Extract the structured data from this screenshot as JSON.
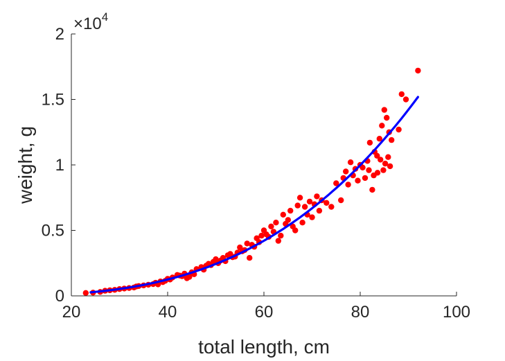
{
  "chart_data": {
    "type": "scatter",
    "title": "",
    "xlabel": "total length, cm",
    "ylabel": "weight, g",
    "xlim": [
      20,
      100
    ],
    "ylim": [
      0,
      20000
    ],
    "x_ticks": [
      20,
      40,
      60,
      80,
      100
    ],
    "x_tick_labels": [
      "20",
      "40",
      "60",
      "80",
      "100"
    ],
    "y_ticks": [
      0,
      5000,
      10000,
      15000,
      20000
    ],
    "y_tick_labels": [
      "0",
      "0.5",
      "1",
      "1.5",
      "2"
    ],
    "y_exponent_label": {
      "base": "×10",
      "exponent": "4"
    },
    "grid": false,
    "series": [
      {
        "kind": "scatter",
        "color": "#ff0000",
        "points": [
          [
            23,
            220
          ],
          [
            24.5,
            250
          ],
          [
            26,
            300
          ],
          [
            27,
            390
          ],
          [
            28,
            430
          ],
          [
            29,
            460
          ],
          [
            30,
            520
          ],
          [
            31,
            560
          ],
          [
            32,
            600
          ],
          [
            33,
            640
          ],
          [
            33.5,
            720
          ],
          [
            34,
            750
          ],
          [
            35,
            800
          ],
          [
            36,
            850
          ],
          [
            37,
            900
          ],
          [
            37.5,
            1000
          ],
          [
            38,
            880
          ],
          [
            38.5,
            1100
          ],
          [
            39,
            1050
          ],
          [
            39.5,
            1150
          ],
          [
            40,
            1300
          ],
          [
            40.5,
            1250
          ],
          [
            41,
            1400
          ],
          [
            42,
            1600
          ],
          [
            42.5,
            1550
          ],
          [
            43,
            1500
          ],
          [
            43.5,
            1700
          ],
          [
            44,
            1350
          ],
          [
            44.5,
            1450
          ],
          [
            45,
            1800
          ],
          [
            45.5,
            1650
          ],
          [
            46,
            2050
          ],
          [
            47,
            2200
          ],
          [
            47.5,
            2000
          ],
          [
            48,
            2300
          ],
          [
            48.5,
            2450
          ],
          [
            49,
            2350
          ],
          [
            49.5,
            2600
          ],
          [
            50,
            2800
          ],
          [
            50.5,
            2500
          ],
          [
            51,
            2700
          ],
          [
            51.5,
            2900
          ],
          [
            52,
            2650
          ],
          [
            52.5,
            3100
          ],
          [
            53,
            3200
          ],
          [
            53.5,
            2950
          ],
          [
            54,
            3000
          ],
          [
            54.5,
            3300
          ],
          [
            55,
            3700
          ],
          [
            55.5,
            3400
          ],
          [
            56,
            3500
          ],
          [
            56.5,
            4000
          ],
          [
            57,
            2900
          ],
          [
            57.5,
            3900
          ],
          [
            58,
            3750
          ],
          [
            58.5,
            4400
          ],
          [
            59,
            4100
          ],
          [
            59.5,
            4600
          ],
          [
            60,
            5000
          ],
          [
            60.5,
            4700
          ],
          [
            61,
            4500
          ],
          [
            61.5,
            5300
          ],
          [
            62,
            4900
          ],
          [
            62.5,
            5600
          ],
          [
            63,
            4200
          ],
          [
            63.5,
            4600
          ],
          [
            64,
            6200
          ],
          [
            64.5,
            5500
          ],
          [
            65,
            5800
          ],
          [
            65.5,
            6500
          ],
          [
            66,
            5300
          ],
          [
            66.5,
            5000
          ],
          [
            67,
            6900
          ],
          [
            67.5,
            7500
          ],
          [
            68,
            5600
          ],
          [
            68.5,
            6800
          ],
          [
            69,
            6200
          ],
          [
            69.5,
            7200
          ],
          [
            70,
            6000
          ],
          [
            70.5,
            7000
          ],
          [
            71,
            7600
          ],
          [
            71.5,
            6500
          ],
          [
            72,
            7300
          ],
          [
            73,
            7100
          ],
          [
            74,
            6800
          ],
          [
            75,
            8600
          ],
          [
            76,
            7300
          ],
          [
            76.5,
            9000
          ],
          [
            77,
            9500
          ],
          [
            77.5,
            8500
          ],
          [
            78,
            10200
          ],
          [
            78.5,
            9200
          ],
          [
            79,
            9700
          ],
          [
            79.5,
            8800
          ],
          [
            80,
            10000
          ],
          [
            80.5,
            9800
          ],
          [
            81,
            9000
          ],
          [
            81.5,
            10300
          ],
          [
            82,
            11700
          ],
          [
            82.5,
            8100
          ],
          [
            83,
            11000
          ],
          [
            83.5,
            10700
          ],
          [
            84,
            12000
          ],
          [
            84.5,
            13000
          ],
          [
            85,
            14200
          ],
          [
            85.5,
            13600
          ],
          [
            86,
            12500
          ],
          [
            86.5,
            11900
          ],
          [
            84.2,
            10400
          ],
          [
            84.8,
            9600
          ],
          [
            85.2,
            10100
          ],
          [
            83.6,
            9400
          ],
          [
            82.8,
            9200
          ],
          [
            81.8,
            9600
          ],
          [
            85.8,
            10600
          ],
          [
            86.2,
            9900
          ],
          [
            88,
            12700
          ],
          [
            88.6,
            15400
          ],
          [
            89.5,
            15000
          ],
          [
            92,
            17200
          ]
        ]
      },
      {
        "kind": "line",
        "color": "#0000ff",
        "fit": {
          "a": 0.0195,
          "b": 3.0,
          "x_start": 24,
          "x_end": 92
        }
      }
    ]
  }
}
